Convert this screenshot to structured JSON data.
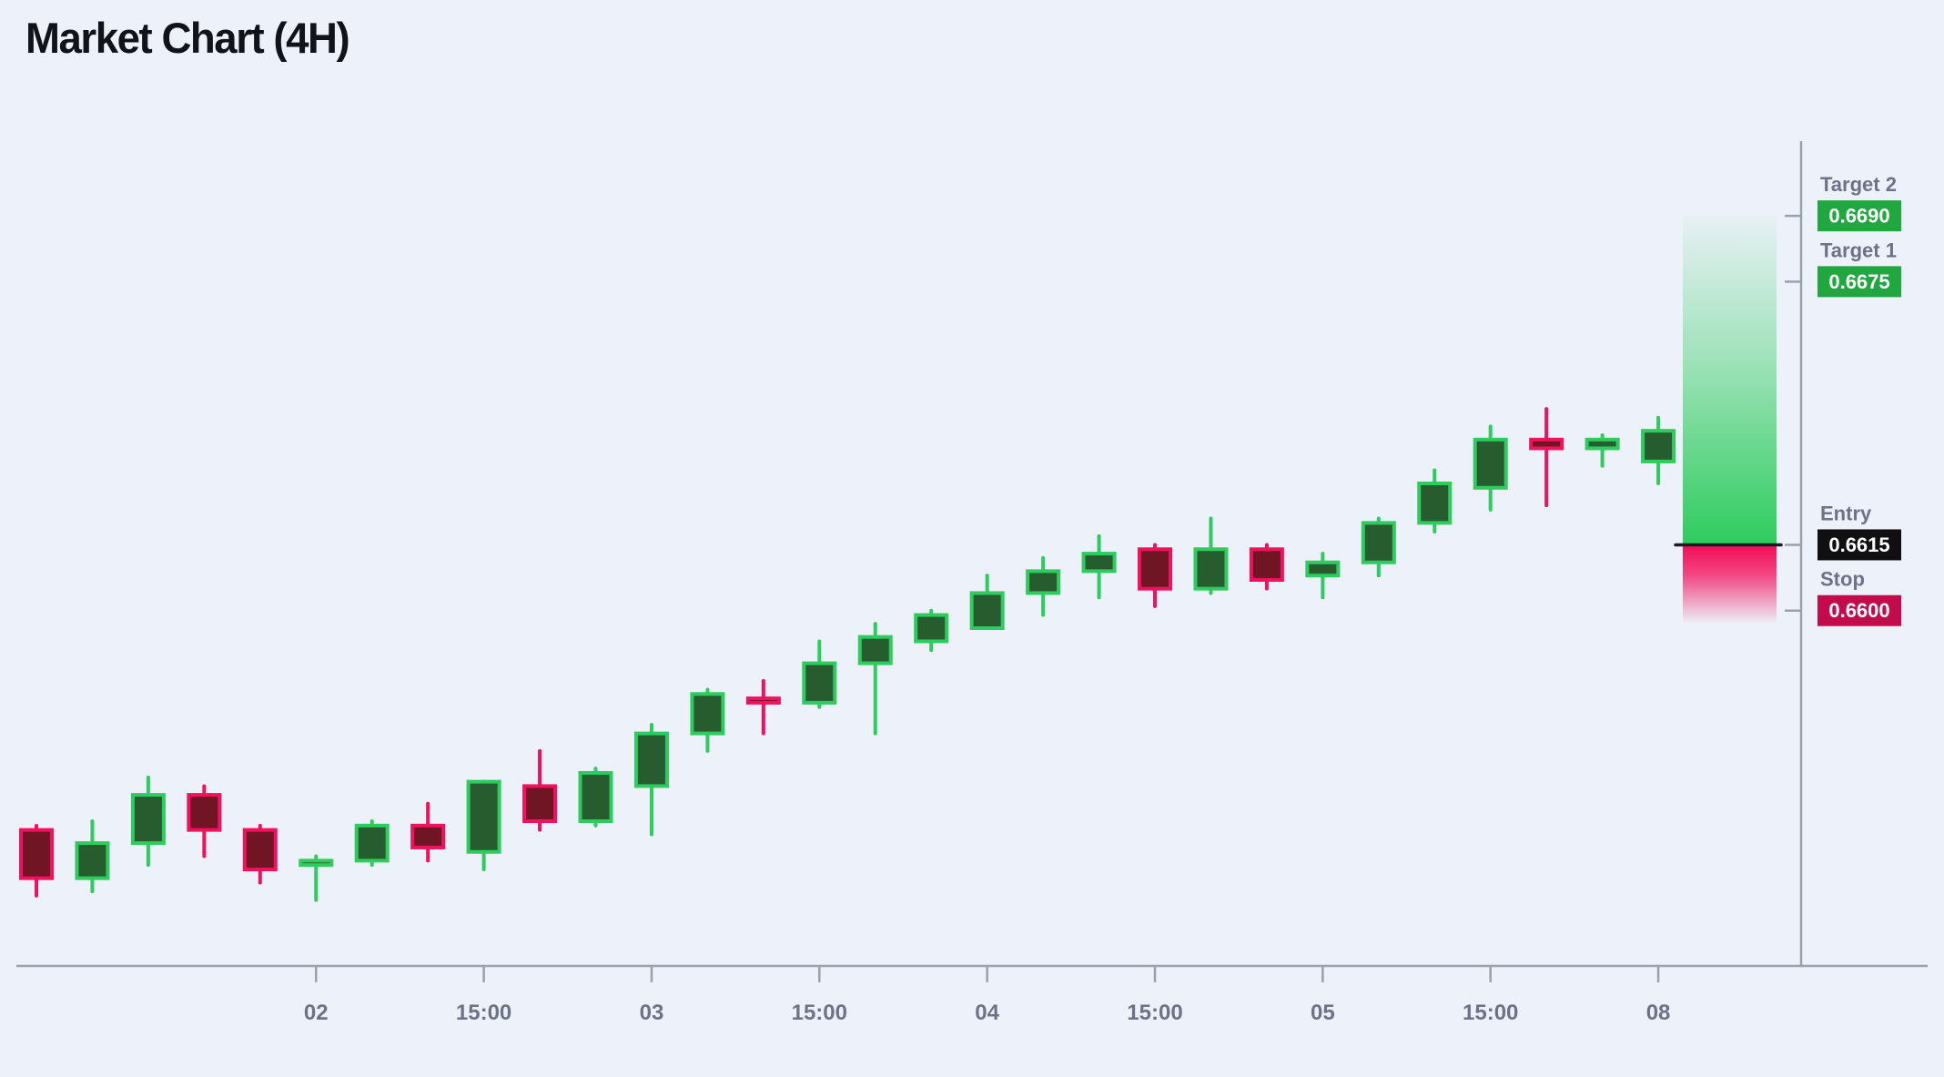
{
  "page": {
    "title": "Market Chart (4H)",
    "background": "#edf1f9"
  },
  "chart_data": {
    "type": "candlestick",
    "title": "Market Chart (4H)",
    "timeframe": "4H",
    "grid": false,
    "colors": {
      "up_border": "#2ecc5e",
      "up_fill": "#275c2e",
      "down_border": "#f2115c",
      "down_fill": "#701523",
      "axis_line": "#9aa1ad",
      "axis_text": "#6e7288",
      "entry_line": "#1a1c20",
      "profit_zone": "#2ecc5e",
      "loss_zone": "#f30d59"
    },
    "y_axis": {
      "range": [
        0.6519,
        0.6706
      ],
      "side": "right"
    },
    "x_axis": {
      "ticks": [
        {
          "label": "02",
          "candle_index": 5
        },
        {
          "label": "15:00",
          "candle_index": 8
        },
        {
          "label": "03",
          "candle_index": 11
        },
        {
          "label": "15:00",
          "candle_index": 14
        },
        {
          "label": "04",
          "candle_index": 17
        },
        {
          "label": "15:00",
          "candle_index": 20
        },
        {
          "label": "05",
          "candle_index": 23
        },
        {
          "label": "15:00",
          "candle_index": 26
        },
        {
          "label": "08",
          "candle_index": 29
        }
      ]
    },
    "candles": [
      {
        "o": 0.655,
        "h": 0.6551,
        "l": 0.6535,
        "c": 0.6539
      },
      {
        "o": 0.6539,
        "h": 0.6552,
        "l": 0.6536,
        "c": 0.6547
      },
      {
        "o": 0.6547,
        "h": 0.6562,
        "l": 0.6542,
        "c": 0.6558
      },
      {
        "o": 0.6558,
        "h": 0.656,
        "l": 0.6544,
        "c": 0.655
      },
      {
        "o": 0.655,
        "h": 0.6551,
        "l": 0.6538,
        "c": 0.6541
      },
      {
        "o": 0.6542,
        "h": 0.6544,
        "l": 0.6534,
        "c": 0.6543
      },
      {
        "o": 0.6543,
        "h": 0.6552,
        "l": 0.6542,
        "c": 0.6551
      },
      {
        "o": 0.6551,
        "h": 0.6556,
        "l": 0.6543,
        "c": 0.6546
      },
      {
        "o": 0.6545,
        "h": 0.6561,
        "l": 0.6541,
        "c": 0.6561
      },
      {
        "o": 0.656,
        "h": 0.6568,
        "l": 0.655,
        "c": 0.6552
      },
      {
        "o": 0.6552,
        "h": 0.6564,
        "l": 0.6551,
        "c": 0.6563
      },
      {
        "o": 0.656,
        "h": 0.6574,
        "l": 0.6549,
        "c": 0.6572
      },
      {
        "o": 0.6572,
        "h": 0.6582,
        "l": 0.6568,
        "c": 0.6581
      },
      {
        "o": 0.658,
        "h": 0.6584,
        "l": 0.6572,
        "c": 0.6579
      },
      {
        "o": 0.6579,
        "h": 0.6593,
        "l": 0.6578,
        "c": 0.6588
      },
      {
        "o": 0.6588,
        "h": 0.6597,
        "l": 0.6572,
        "c": 0.6594
      },
      {
        "o": 0.6593,
        "h": 0.66,
        "l": 0.6591,
        "c": 0.6599
      },
      {
        "o": 0.6596,
        "h": 0.6608,
        "l": 0.6596,
        "c": 0.6604
      },
      {
        "o": 0.6604,
        "h": 0.6612,
        "l": 0.6599,
        "c": 0.6609
      },
      {
        "o": 0.6609,
        "h": 0.6617,
        "l": 0.6603,
        "c": 0.6613
      },
      {
        "o": 0.6614,
        "h": 0.6615,
        "l": 0.6601,
        "c": 0.6605
      },
      {
        "o": 0.6605,
        "h": 0.6621,
        "l": 0.6604,
        "c": 0.6614
      },
      {
        "o": 0.6614,
        "h": 0.6615,
        "l": 0.6605,
        "c": 0.6607
      },
      {
        "o": 0.6608,
        "h": 0.6613,
        "l": 0.6603,
        "c": 0.6611
      },
      {
        "o": 0.6611,
        "h": 0.6621,
        "l": 0.6608,
        "c": 0.662
      },
      {
        "o": 0.662,
        "h": 0.6632,
        "l": 0.6618,
        "c": 0.6629
      },
      {
        "o": 0.6628,
        "h": 0.6642,
        "l": 0.6623,
        "c": 0.6639
      },
      {
        "o": 0.6639,
        "h": 0.6646,
        "l": 0.6624,
        "c": 0.6637
      },
      {
        "o": 0.6637,
        "h": 0.664,
        "l": 0.6633,
        "c": 0.6639
      },
      {
        "o": 0.6634,
        "h": 0.6644,
        "l": 0.6629,
        "c": 0.6641
      }
    ],
    "levels": [
      {
        "id": "target2",
        "label": "Target 2",
        "value": "0.6690",
        "price": 0.669,
        "badge_bg": "#21a73f",
        "text_color": "#ffffff"
      },
      {
        "id": "target1",
        "label": "Target 1",
        "value": "0.6675",
        "price": 0.6675,
        "badge_bg": "#21a73f",
        "text_color": "#ffffff"
      },
      {
        "id": "entry",
        "label": "Entry",
        "value": "0.6615",
        "price": 0.6615,
        "badge_bg": "#101012",
        "text_color": "#ffffff"
      },
      {
        "id": "stop",
        "label": "Stop",
        "value": "0.6600",
        "price": 0.66,
        "badge_bg": "#c30b4b",
        "text_color": "#ffffff"
      }
    ],
    "zones": [
      {
        "id": "profit-zone",
        "top_price": 0.669,
        "bottom_price": 0.6615,
        "fade": "up"
      },
      {
        "id": "loss-zone",
        "top_price": 0.6615,
        "bottom_price": 0.6597,
        "fade": "down"
      }
    ],
    "entry_line_price": 0.6615
  }
}
